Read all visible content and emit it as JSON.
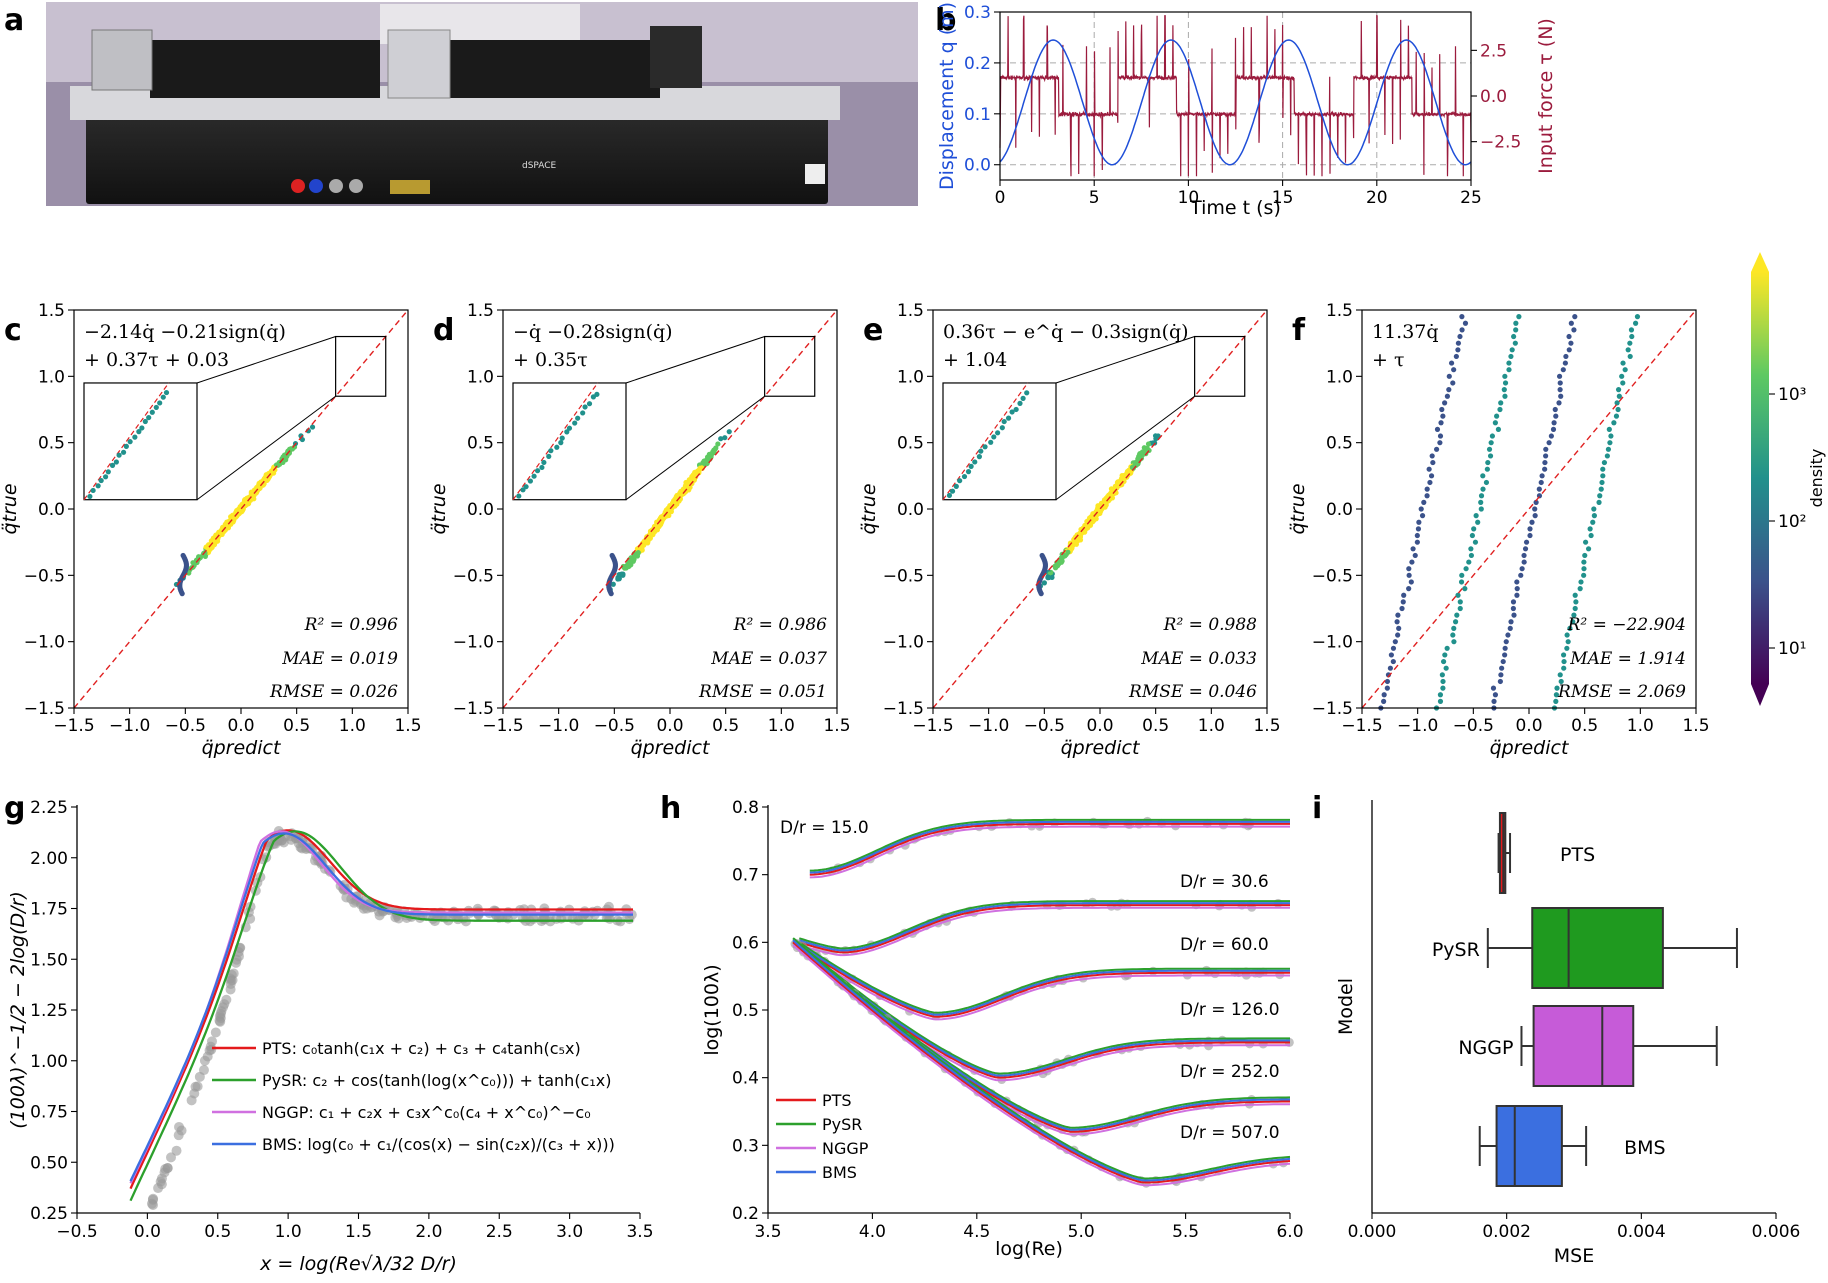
{
  "panels": {
    "a": {
      "letter": "a",
      "photo_caption": "dSPACE"
    },
    "b": {
      "letter": "b",
      "chart_data": {
        "type": "line",
        "xlabel": "Time t (s)",
        "ylabel_left": "Displacement q (m)",
        "ylabel_right": "Input force τ (N)",
        "xlim": [
          0,
          25
        ],
        "ylim_left": [
          -0.03,
          0.3
        ],
        "ylim_right": [
          -4.6,
          4.6
        ],
        "xticks": [
          0,
          5,
          10,
          15,
          20,
          25
        ],
        "yticks_left": [
          0.0,
          0.1,
          0.2,
          0.3
        ],
        "yticks_right": [
          -2.5,
          0.0,
          2.5
        ],
        "xtick_labels": [
          "0",
          "5",
          "10",
          "15",
          "20",
          "25"
        ],
        "ytick_labels_left": [
          "0.0",
          "0.1",
          "0.2",
          "0.3"
        ],
        "ytick_labels_right": [
          "−2.5",
          "0.0",
          "2.5"
        ],
        "series": [
          {
            "name": "displacement",
            "color": "#1f4fd8",
            "period": 6.25,
            "min": 0.0,
            "max": 0.245
          },
          {
            "name": "input force",
            "color": "#9b1b3d",
            "levels": [
              1.0,
              -1.0
            ]
          }
        ]
      }
    },
    "scatter": [
      {
        "letter": "c",
        "eq1": "−2.14q̇ −0.21sign(q̇)",
        "eq2": "+ 0.37τ + 0.03",
        "r2": "R² = 0.996",
        "mae": "MAE = 0.019",
        "rmse": "RMSE = 0.026",
        "inset": true,
        "slope": 1.0,
        "bad": false
      },
      {
        "letter": "d",
        "eq1": "−q̇ −0.28sign(q̇)",
        "eq2": "+ 0.35τ",
        "r2": "R² = 0.986",
        "mae": "MAE = 0.037",
        "rmse": "RMSE = 0.051",
        "inset": true,
        "slope": 0.9,
        "bad": false
      },
      {
        "letter": "e",
        "eq1": "0.36τ − e^q̇ − 0.3sign(q̇)",
        "eq2": "+ 1.04",
        "r2": "R² = 0.988",
        "mae": "MAE = 0.033",
        "rmse": "RMSE = 0.046",
        "inset": true,
        "slope": 0.92,
        "bad": false
      },
      {
        "letter": "f",
        "eq1": "11.37q̇",
        "eq2": "+ τ",
        "r2": "R² = −22.904",
        "mae": "MAE = 1.914",
        "rmse": "RMSE = 2.069",
        "inset": false,
        "slope": 1.0,
        "bad": true
      }
    ],
    "scatter_axes": {
      "xlabel": "q̈predict",
      "ylabel": "q̈true",
      "lim": [
        -1.5,
        1.5
      ],
      "ticks": [
        -1.5,
        -1.0,
        -0.5,
        0.0,
        0.5,
        1.0,
        1.5
      ],
      "tick_labels": [
        "−1.5",
        "−1.0",
        "−0.5",
        "0.0",
        "0.5",
        "1.0",
        "1.5"
      ]
    },
    "colorbar": {
      "label": "density",
      "tick_labels": [
        "10³",
        "10²",
        "10¹"
      ],
      "colors": [
        "#fde725",
        "#5ec962",
        "#21918c",
        "#3b528b",
        "#440154"
      ]
    },
    "g": {
      "letter": "g",
      "chart_data": {
        "type": "line",
        "xlabel": "x = log(Re√λ/32 D/r)",
        "ylabel": "(100λ)^−1/2 − 2log(D/r)",
        "xlim": [
          -0.5,
          3.5
        ],
        "ylim": [
          0.25,
          2.25
        ],
        "xticks": [
          -0.5,
          0.0,
          0.5,
          1.0,
          1.5,
          2.0,
          2.5,
          3.0,
          3.5
        ],
        "yticks": [
          0.25,
          0.5,
          0.75,
          1.0,
          1.25,
          1.5,
          1.75,
          2.0,
          2.25
        ],
        "xtick_labels": [
          "−0.5",
          "0.0",
          "0.5",
          "1.0",
          "1.5",
          "2.0",
          "2.5",
          "3.0",
          "3.5"
        ],
        "ytick_labels": [
          "0.25",
          "0.50",
          "0.75",
          "1.00",
          "1.25",
          "1.50",
          "1.75",
          "2.00",
          "2.25"
        ],
        "legend": [
          {
            "name": "PTS",
            "label": "PTS: c₀tanh(c₁x + c₂) + c₃ + c₄tanh(c₅x)",
            "color": "#e41a1c"
          },
          {
            "name": "PySR",
            "label": "PySR: c₂ + cos(tanh(log(x^c₀))) + tanh(c₁x)",
            "color": "#2ca02c"
          },
          {
            "name": "NGGP",
            "label": "NGGP: c₁ + c₂x + c₃x^c₀(c₄ + x^c₀)^−c₀",
            "color": "#d070e0"
          },
          {
            "name": "BMS",
            "label": "BMS: log(c₀ + c₁/(cos(x) − sin(c₂x)/(c₃ + x)))",
            "color": "#3b6fe0"
          }
        ]
      }
    },
    "h": {
      "letter": "h",
      "chart_data": {
        "type": "line",
        "xlabel": "log(Re)",
        "ylabel": "log(100λ)",
        "xlim": [
          3.5,
          6.0
        ],
        "ylim": [
          0.2,
          0.8
        ],
        "xticks": [
          3.5,
          4.0,
          4.5,
          5.0,
          5.5,
          6.0
        ],
        "yticks": [
          0.2,
          0.3,
          0.4,
          0.5,
          0.6,
          0.7,
          0.8
        ],
        "xtick_labels": [
          "3.5",
          "4.0",
          "4.5",
          "5.0",
          "5.5",
          "6.0"
        ],
        "ytick_labels": [
          "0.2",
          "0.3",
          "0.4",
          "0.5",
          "0.6",
          "0.7",
          "0.8"
        ],
        "curve_labels": [
          "D/r = 15.0",
          "D/r = 30.6",
          "D/r = 60.0",
          "D/r = 126.0",
          "D/r = 252.0",
          "D/r = 507.0"
        ],
        "curves": [
          {
            "x0": 3.7,
            "y0": 0.7,
            "ymin": 0.7,
            "xmin": 3.7,
            "yend": 0.775
          },
          {
            "x0": 3.65,
            "y0": 0.6,
            "ymin": 0.585,
            "xmin": 3.85,
            "yend": 0.655
          },
          {
            "x0": 3.62,
            "y0": 0.6,
            "ymin": 0.49,
            "xmin": 4.3,
            "yend": 0.555
          },
          {
            "x0": 3.62,
            "y0": 0.6,
            "ymin": 0.4,
            "xmin": 4.6,
            "yend": 0.452
          },
          {
            "x0": 3.62,
            "y0": 0.6,
            "ymin": 0.32,
            "xmin": 4.95,
            "yend": 0.365
          },
          {
            "x0": 3.62,
            "y0": 0.6,
            "ymin": 0.245,
            "xmin": 5.3,
            "yend": 0.28
          }
        ],
        "legend": [
          {
            "name": "PTS",
            "color": "#e41a1c"
          },
          {
            "name": "PySR",
            "color": "#2ca02c"
          },
          {
            "name": "NGGP",
            "color": "#d070e0"
          },
          {
            "name": "BMS",
            "color": "#3b6fe0"
          }
        ]
      }
    },
    "i": {
      "letter": "i",
      "chart_data": {
        "type": "box",
        "xlabel": "MSE",
        "ylabel": "Model",
        "xlim": [
          0.0,
          0.006
        ],
        "xticks": [
          0.0,
          0.002,
          0.004,
          0.006
        ],
        "xtick_labels": [
          "0.000",
          "0.002",
          "0.004",
          "0.006"
        ],
        "boxes": [
          {
            "name": "PTS",
            "color": "#e41a1c",
            "wlo": 0.00188,
            "q1": 0.0019,
            "med": 0.00195,
            "q3": 0.00198,
            "whi": 0.00205
          },
          {
            "name": "PySR",
            "color": "#1f9a1f",
            "wlo": 0.00172,
            "q1": 0.00238,
            "med": 0.00292,
            "q3": 0.00432,
            "whi": 0.00542
          },
          {
            "name": "NGGP",
            "color": "#c65bd8",
            "wlo": 0.00222,
            "q1": 0.0024,
            "med": 0.00342,
            "q3": 0.00388,
            "whi": 0.00512
          },
          {
            "name": "BMS",
            "color": "#3b6fe0",
            "wlo": 0.0016,
            "q1": 0.00185,
            "med": 0.00212,
            "q3": 0.00282,
            "whi": 0.00318
          }
        ]
      }
    }
  }
}
